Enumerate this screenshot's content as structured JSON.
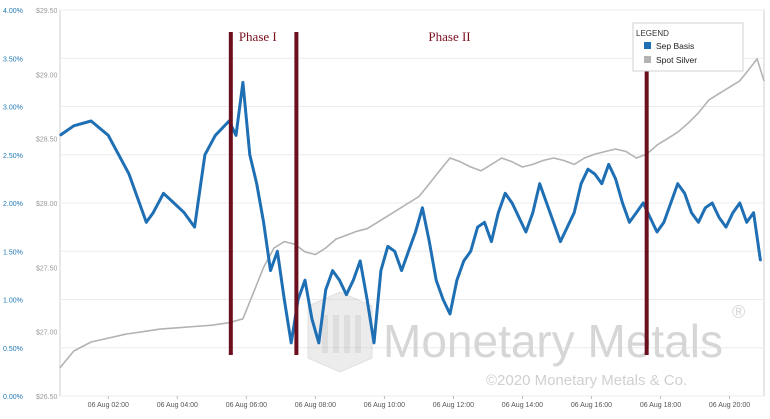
{
  "chart_data": {
    "type": "line",
    "title": "",
    "xlabel": "",
    "ylabel": "",
    "x_ticks": [
      "06 Aug 02:00",
      "06 Aug 04:00",
      "06 Aug 06:00",
      "06 Aug 08:00",
      "06 Aug 10:00",
      "06 Aug 12:00",
      "06 Aug 14:00",
      "06 Aug 16:00",
      "06 Aug 18:00",
      "06 Aug 20:00"
    ],
    "x_range_hours": [
      0.6,
      21.0
    ],
    "y_left": {
      "ticks": [
        "0.00%",
        "0.50%",
        "1.00%",
        "1.50%",
        "2.00%",
        "2.50%",
        "3.00%",
        "3.50%",
        "4.00%"
      ],
      "range": [
        0,
        4
      ]
    },
    "y_right": {
      "ticks": [
        "$26.50",
        "$27.00",
        "$27.50",
        "$28.00",
        "$28.50",
        "$29.00",
        "$29.50"
      ],
      "range": [
        26.5,
        29.5
      ]
    },
    "grid": "horizontal",
    "legend": {
      "title": "LEGEND",
      "position": "top-right"
    },
    "series": [
      {
        "name": "Sep Basis",
        "color": "#1f6fb4",
        "axis": "left",
        "points": [
          [
            0.6,
            2.7
          ],
          [
            1.0,
            2.8
          ],
          [
            1.5,
            2.85
          ],
          [
            2.0,
            2.7
          ],
          [
            2.3,
            2.5
          ],
          [
            2.6,
            2.3
          ],
          [
            2.9,
            2.0
          ],
          [
            3.1,
            1.8
          ],
          [
            3.3,
            1.9
          ],
          [
            3.6,
            2.1
          ],
          [
            3.9,
            2.0
          ],
          [
            4.2,
            1.9
          ],
          [
            4.5,
            1.75
          ],
          [
            4.6,
            2.0
          ],
          [
            4.8,
            2.5
          ],
          [
            5.1,
            2.7
          ],
          [
            5.5,
            2.85
          ],
          [
            5.7,
            2.7
          ],
          [
            5.9,
            3.25
          ],
          [
            6.1,
            2.5
          ],
          [
            6.3,
            2.2
          ],
          [
            6.5,
            1.8
          ],
          [
            6.7,
            1.3
          ],
          [
            6.9,
            1.5
          ],
          [
            7.1,
            1.0
          ],
          [
            7.3,
            0.55
          ],
          [
            7.5,
            1.0
          ],
          [
            7.7,
            1.2
          ],
          [
            7.9,
            0.8
          ],
          [
            8.1,
            0.55
          ],
          [
            8.3,
            1.1
          ],
          [
            8.5,
            1.3
          ],
          [
            8.7,
            1.2
          ],
          [
            8.9,
            1.05
          ],
          [
            9.1,
            1.2
          ],
          [
            9.3,
            1.4
          ],
          [
            9.5,
            1.0
          ],
          [
            9.7,
            0.55
          ],
          [
            9.9,
            1.3
          ],
          [
            10.1,
            1.55
          ],
          [
            10.3,
            1.5
          ],
          [
            10.5,
            1.3
          ],
          [
            10.7,
            1.5
          ],
          [
            10.9,
            1.7
          ],
          [
            11.1,
            1.95
          ],
          [
            11.3,
            1.6
          ],
          [
            11.5,
            1.2
          ],
          [
            11.7,
            1.0
          ],
          [
            11.9,
            0.85
          ],
          [
            12.1,
            1.2
          ],
          [
            12.3,
            1.4
          ],
          [
            12.5,
            1.5
          ],
          [
            12.7,
            1.75
          ],
          [
            12.9,
            1.8
          ],
          [
            13.1,
            1.6
          ],
          [
            13.3,
            1.9
          ],
          [
            13.5,
            2.1
          ],
          [
            13.7,
            2.0
          ],
          [
            13.9,
            1.85
          ],
          [
            14.1,
            1.7
          ],
          [
            14.3,
            1.9
          ],
          [
            14.5,
            2.2
          ],
          [
            14.7,
            2.0
          ],
          [
            14.9,
            1.8
          ],
          [
            15.1,
            1.6
          ],
          [
            15.3,
            1.75
          ],
          [
            15.5,
            1.9
          ],
          [
            15.7,
            2.2
          ],
          [
            15.9,
            2.35
          ],
          [
            16.1,
            2.3
          ],
          [
            16.3,
            2.2
          ],
          [
            16.5,
            2.4
          ],
          [
            16.7,
            2.25
          ],
          [
            16.9,
            2.0
          ],
          [
            17.1,
            1.8
          ],
          [
            17.3,
            1.9
          ],
          [
            17.5,
            2.0
          ],
          [
            17.7,
            1.85
          ],
          [
            17.9,
            1.7
          ],
          [
            18.1,
            1.8
          ],
          [
            18.3,
            2.0
          ],
          [
            18.5,
            2.2
          ],
          [
            18.7,
            2.1
          ],
          [
            18.9,
            1.9
          ],
          [
            19.1,
            1.8
          ],
          [
            19.3,
            1.95
          ],
          [
            19.5,
            2.0
          ],
          [
            19.7,
            1.85
          ],
          [
            19.9,
            1.75
          ],
          [
            20.1,
            1.9
          ],
          [
            20.3,
            2.0
          ],
          [
            20.5,
            1.8
          ],
          [
            20.7,
            1.9
          ],
          [
            20.9,
            1.4
          ]
        ]
      },
      {
        "name": "Spot Silver",
        "color": "#b3b3b3",
        "axis": "right",
        "points": [
          [
            0.6,
            26.72
          ],
          [
            1.0,
            26.85
          ],
          [
            1.5,
            26.92
          ],
          [
            2.0,
            26.95
          ],
          [
            2.5,
            26.98
          ],
          [
            3.0,
            27.0
          ],
          [
            3.5,
            27.02
          ],
          [
            4.0,
            27.03
          ],
          [
            4.5,
            27.04
          ],
          [
            5.0,
            27.05
          ],
          [
            5.5,
            27.07
          ],
          [
            5.9,
            27.1
          ],
          [
            6.2,
            27.3
          ],
          [
            6.5,
            27.5
          ],
          [
            6.8,
            27.65
          ],
          [
            7.1,
            27.7
          ],
          [
            7.4,
            27.68
          ],
          [
            7.7,
            27.62
          ],
          [
            8.0,
            27.6
          ],
          [
            8.3,
            27.65
          ],
          [
            8.6,
            27.72
          ],
          [
            8.9,
            27.75
          ],
          [
            9.2,
            27.78
          ],
          [
            9.5,
            27.8
          ],
          [
            9.8,
            27.85
          ],
          [
            10.1,
            27.9
          ],
          [
            10.4,
            27.95
          ],
          [
            10.7,
            28.0
          ],
          [
            11.0,
            28.05
          ],
          [
            11.3,
            28.15
          ],
          [
            11.6,
            28.25
          ],
          [
            11.9,
            28.35
          ],
          [
            12.2,
            28.32
          ],
          [
            12.5,
            28.28
          ],
          [
            12.8,
            28.25
          ],
          [
            13.1,
            28.3
          ],
          [
            13.4,
            28.35
          ],
          [
            13.7,
            28.32
          ],
          [
            14.0,
            28.28
          ],
          [
            14.3,
            28.3
          ],
          [
            14.6,
            28.33
          ],
          [
            14.9,
            28.35
          ],
          [
            15.2,
            28.33
          ],
          [
            15.5,
            28.3
          ],
          [
            15.8,
            28.35
          ],
          [
            16.1,
            28.38
          ],
          [
            16.4,
            28.4
          ],
          [
            16.7,
            28.42
          ],
          [
            17.0,
            28.4
          ],
          [
            17.3,
            28.35
          ],
          [
            17.6,
            28.38
          ],
          [
            17.9,
            28.45
          ],
          [
            18.2,
            28.5
          ],
          [
            18.5,
            28.55
          ],
          [
            18.8,
            28.62
          ],
          [
            19.1,
            28.7
          ],
          [
            19.4,
            28.8
          ],
          [
            19.7,
            28.85
          ],
          [
            20.0,
            28.9
          ],
          [
            20.3,
            28.95
          ],
          [
            20.6,
            29.05
          ],
          [
            20.8,
            29.12
          ],
          [
            21.0,
            28.95
          ]
        ]
      }
    ],
    "annotations": {
      "phase_labels": [
        {
          "text": "Phase I",
          "x_hours": 5.7
        },
        {
          "text": "Phase II",
          "x_hours": 12.0
        }
      ],
      "phase_lines_hours": [
        5.55,
        7.45,
        17.6
      ],
      "phase_line_color": "#6b0f1e"
    }
  },
  "watermark": {
    "brand": "Monetary Metals",
    "registered": "®",
    "copyright": "©2020 Monetary Metals & Co."
  }
}
